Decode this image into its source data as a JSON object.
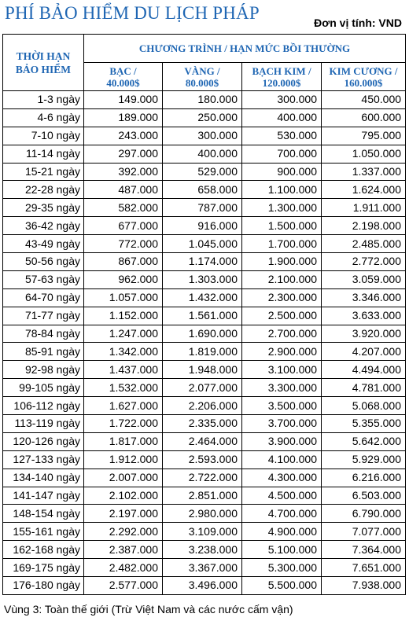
{
  "title": "PHÍ BẢO HIỂM DU LỊCH PHÁP",
  "unit": "Đơn vị tính: VND",
  "table": {
    "duration_header": [
      "THỜI HẠN",
      "BẢO HIỂM"
    ],
    "group_header": "CHƯƠNG TRÌNH / HẠN MỨC BỒI THƯỜNG",
    "plans": [
      {
        "name": "BẠC /",
        "limit": "40.000$"
      },
      {
        "name": "VÀNG /",
        "limit": "80.000$"
      },
      {
        "name": "BẠCH KIM /",
        "limit": "120.000$"
      },
      {
        "name": "KIM CƯƠNG /",
        "limit": "160.000$"
      }
    ],
    "rows": [
      {
        "d": "1-3 ngày",
        "v": [
          "149.000",
          "180.000",
          "300.000",
          "450.000"
        ]
      },
      {
        "d": "4-6 ngày",
        "v": [
          "189.000",
          "250.000",
          "400.000",
          "600.000"
        ]
      },
      {
        "d": "7-10 ngày",
        "v": [
          "243.000",
          "300.000",
          "530.000",
          "795.000"
        ]
      },
      {
        "d": "11-14 ngày",
        "v": [
          "297.000",
          "400.000",
          "700.000",
          "1.050.000"
        ]
      },
      {
        "d": "15-21 ngày",
        "v": [
          "392.000",
          "529.000",
          "900.000",
          "1.337.000"
        ]
      },
      {
        "d": "22-28 ngày",
        "v": [
          "487.000",
          "658.000",
          "1.100.000",
          "1.624.000"
        ]
      },
      {
        "d": "29-35 ngày",
        "v": [
          "582.000",
          "787.000",
          "1.300.000",
          "1.911.000"
        ]
      },
      {
        "d": "36-42 ngày",
        "v": [
          "677.000",
          "916.000",
          "1.500.000",
          "2.198.000"
        ]
      },
      {
        "d": "43-49 ngày",
        "v": [
          "772.000",
          "1.045.000",
          "1.700.000",
          "2.485.000"
        ]
      },
      {
        "d": "50-56 ngày",
        "v": [
          "867.000",
          "1.174.000",
          "1.900.000",
          "2.772.000"
        ]
      },
      {
        "d": "57-63 ngày",
        "v": [
          "962.000",
          "1.303.000",
          "2.100.000",
          "3.059.000"
        ]
      },
      {
        "d": "64-70 ngày",
        "v": [
          "1.057.000",
          "1.432.000",
          "2.300.000",
          "3.346.000"
        ]
      },
      {
        "d": "71-77 ngày",
        "v": [
          "1.152.000",
          "1.561.000",
          "2.500.000",
          "3.633.000"
        ]
      },
      {
        "d": "78-84 ngày",
        "v": [
          "1.247.000",
          "1.690.000",
          "2.700.000",
          "3.920.000"
        ]
      },
      {
        "d": "85-91 ngày",
        "v": [
          "1.342.000",
          "1.819.000",
          "2.900.000",
          "4.207.000"
        ]
      },
      {
        "d": "92-98 ngày",
        "v": [
          "1.437.000",
          "1.948.000",
          "3.100.000",
          "4.494.000"
        ]
      },
      {
        "d": "99-105 ngày",
        "v": [
          "1.532.000",
          "2.077.000",
          "3.300.000",
          "4.781.000"
        ]
      },
      {
        "d": "106-112 ngày",
        "v": [
          "1.627.000",
          "2.206.000",
          "3.500.000",
          "5.068.000"
        ]
      },
      {
        "d": "113-119 ngày",
        "v": [
          "1.722.000",
          "2.335.000",
          "3.700.000",
          "5.355.000"
        ]
      },
      {
        "d": "120-126 ngày",
        "v": [
          "1.817.000",
          "2.464.000",
          "3.900.000",
          "5.642.000"
        ]
      },
      {
        "d": "127-133 ngày",
        "v": [
          "1.912.000",
          "2.593.000",
          "4.100.000",
          "5.929.000"
        ]
      },
      {
        "d": "134-140 ngày",
        "v": [
          "2.007.000",
          "2.722.000",
          "4.300.000",
          "6.216.000"
        ]
      },
      {
        "d": "141-147 ngày",
        "v": [
          "2.102.000",
          "2.851.000",
          "4.500.000",
          "6.503.000"
        ]
      },
      {
        "d": "148-154 ngày",
        "v": [
          "2.197.000",
          "2.980.000",
          "4.700.000",
          "6.790.000"
        ]
      },
      {
        "d": "155-161 ngày",
        "v": [
          "2.292.000",
          "3.109.000",
          "4.900.000",
          "7.077.000"
        ]
      },
      {
        "d": "162-168 ngày",
        "v": [
          "2.387.000",
          "3.238.000",
          "5.100.000",
          "7.364.000"
        ]
      },
      {
        "d": "169-175 ngày",
        "v": [
          "2.482.000",
          "3.367.000",
          "5.300.000",
          "7.651.000"
        ]
      },
      {
        "d": "176-180 ngày",
        "v": [
          "2.577.000",
          "3.496.000",
          "5.500.000",
          "7.938.000"
        ]
      }
    ]
  },
  "footnote": "Vùng 3: Toàn thế giới (Trừ Việt Nam và các nước cấm vận)",
  "colors": {
    "heading": "#1f66b3",
    "border": "#000000",
    "text": "#000000"
  }
}
